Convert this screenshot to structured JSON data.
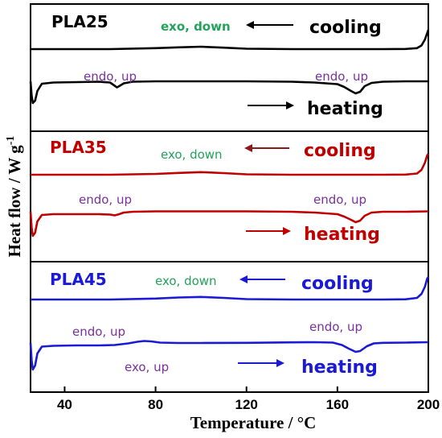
{
  "chart_data": {
    "type": "line",
    "xlabel": "Temperature / °C",
    "ylabel": "Heat flow / W g",
    "ylabel_superscript": "-1",
    "xlim": [
      25,
      200
    ],
    "xticks": [
      40,
      80,
      120,
      160,
      200
    ],
    "panels": [
      {
        "name": "PLA25",
        "color": "#000000",
        "annotations": {
          "cooling_note": "exo, down",
          "cooling_word": "cooling",
          "heating_note_left": "endo, up",
          "heating_note_right": "endo, up",
          "heating_word": "heating"
        },
        "series": [
          {
            "name": "cooling",
            "x": [
              25,
              40,
              60,
              80,
              90,
              100,
              110,
              120,
              140,
              160,
              180,
              190,
              195,
              197,
              198.5,
              199.5,
              200
            ],
            "y": [
              0.0,
              0.0,
              0.0,
              0.12,
              0.22,
              0.3,
              0.18,
              0.05,
              0.0,
              0.0,
              0.0,
              0.02,
              0.12,
              0.45,
              1.2,
              2.0,
              2.4
            ]
          },
          {
            "name": "heating",
            "x": [
              25,
              25.5,
              26,
              27,
              28,
              30,
              35,
              45,
              55,
              60,
              62,
              63,
              64,
              66,
              70,
              80,
              100,
              120,
              140,
              150,
              160,
              163,
              166,
              168,
              170,
              172,
              175,
              180,
              190,
              200
            ],
            "y": [
              0.0,
              -1.8,
              -2.7,
              -2.4,
              -1.2,
              -0.3,
              -0.15,
              -0.1,
              -0.05,
              -0.15,
              -0.55,
              -0.75,
              -0.6,
              -0.25,
              -0.05,
              0.0,
              0.0,
              0.0,
              -0.05,
              -0.15,
              -0.35,
              -0.7,
              -1.2,
              -1.5,
              -1.3,
              -0.6,
              -0.2,
              -0.05,
              0.0,
              0.0
            ]
          }
        ]
      },
      {
        "name": "PLA35",
        "color": "#c00000",
        "annotations": {
          "cooling_note": "exo, down",
          "cooling_word": "cooling",
          "heating_note_left": "endo, up",
          "heating_note_right": "endo, up",
          "heating_word": "heating"
        },
        "series": [
          {
            "name": "cooling",
            "x": [
              25,
              40,
              60,
              80,
              90,
              100,
              110,
              120,
              140,
              160,
              180,
              190,
              195,
              197,
              198.5,
              199.5,
              200
            ],
            "y": [
              0.0,
              0.0,
              0.0,
              0.1,
              0.22,
              0.32,
              0.2,
              0.05,
              0.0,
              0.0,
              0.0,
              0.02,
              0.15,
              0.6,
              1.5,
              2.4,
              2.6
            ]
          },
          {
            "name": "heating",
            "x": [
              25,
              25.5,
              26,
              27,
              28,
              30,
              35,
              45,
              55,
              60,
              62,
              64,
              66,
              70,
              80,
              100,
              120,
              140,
              150,
              160,
              163,
              166,
              168,
              170,
              172,
              175,
              180,
              190,
              200
            ],
            "y": [
              0.0,
              -2.0,
              -3.0,
              -2.6,
              -1.2,
              -0.4,
              -0.3,
              -0.3,
              -0.3,
              -0.35,
              -0.45,
              -0.3,
              -0.1,
              0.0,
              0.05,
              0.05,
              0.05,
              0.0,
              -0.1,
              -0.3,
              -0.6,
              -1.0,
              -1.3,
              -1.1,
              -0.5,
              -0.1,
              0.0,
              0.0,
              0.05
            ]
          }
        ]
      },
      {
        "name": "PLA45",
        "color": "#1a1ad6",
        "annotations": {
          "cooling_note": "exo, down",
          "cooling_word": "cooling",
          "heating_note_left": "endo, up",
          "heating_note_right": "endo, up",
          "heating_note_extra": "exo, up",
          "heating_word": "heating"
        },
        "series": [
          {
            "name": "cooling",
            "x": [
              25,
              40,
              60,
              80,
              90,
              100,
              110,
              120,
              140,
              160,
              180,
              190,
              195,
              197,
              198.5,
              199.5,
              200
            ],
            "y": [
              0.0,
              0.0,
              0.0,
              0.12,
              0.25,
              0.32,
              0.2,
              0.05,
              0.0,
              0.0,
              0.0,
              0.03,
              0.2,
              0.7,
              1.6,
              2.6,
              2.8
            ]
          },
          {
            "name": "heating",
            "x": [
              25,
              25.5,
              26,
              27,
              28,
              30,
              35,
              45,
              55,
              62,
              68,
              72,
              75,
              78,
              82,
              90,
              100,
              120,
              140,
              150,
              158,
              162,
              165,
              168,
              170,
              173,
              176,
              180,
              190,
              200
            ],
            "y": [
              0.0,
              -2.2,
              -3.3,
              -2.8,
              -1.3,
              -0.45,
              -0.35,
              -0.3,
              -0.3,
              -0.25,
              -0.05,
              0.15,
              0.25,
              0.2,
              0.05,
              0.0,
              0.0,
              0.02,
              0.08,
              0.1,
              0.05,
              -0.25,
              -0.7,
              -1.1,
              -1.0,
              -0.4,
              -0.05,
              0.02,
              0.05,
              0.1
            ]
          }
        ]
      }
    ]
  }
}
